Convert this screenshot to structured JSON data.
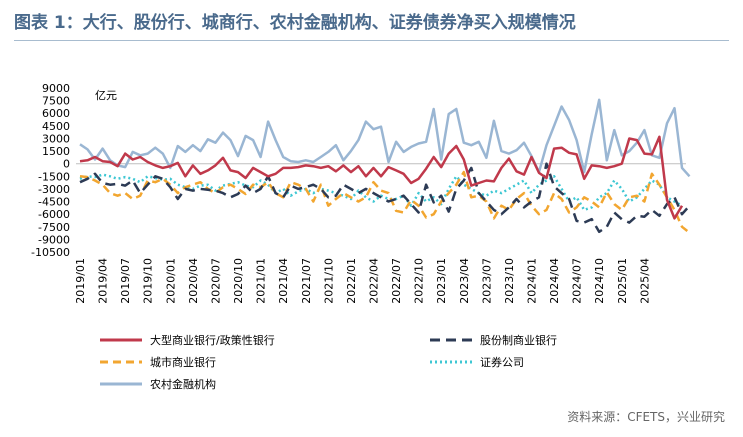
{
  "title": "图表 1：大行、股份行、城商行、农村金融机构、证券债券净买入规模情况",
  "source": "资料来源：CFETS，兴业研究",
  "chart_data": {
    "type": "line",
    "unit": "亿元",
    "ylim": [
      -10500,
      9000
    ],
    "yticks": [
      9000,
      7500,
      6000,
      4500,
      3000,
      1500,
      0,
      -1500,
      -3000,
      -4500,
      -6000,
      -7500,
      -9000,
      -10500
    ],
    "xlabels": [
      "2019/01",
      "2019/04",
      "2019/07",
      "2019/10",
      "2020/01",
      "2020/04",
      "2020/07",
      "2020/10",
      "2021/01",
      "2021/04",
      "2021/07",
      "2021/10",
      "2022/01",
      "2022/04",
      "2022/07",
      "2022/10",
      "2023/01",
      "2023/04",
      "2023/07",
      "2023/10",
      "2024/01",
      "2024/04",
      "2024/07",
      "2024/10",
      "2025/01",
      "2025/04"
    ],
    "series": [
      {
        "name": "大型商业银行/政策性银行",
        "color": "#c0394b",
        "dash": "",
        "width": 2.5,
        "values": [
          300,
          400,
          800,
          300,
          200,
          -300,
          1200,
          500,
          800,
          200,
          -200,
          -500,
          -300,
          100,
          -1500,
          -200,
          -1200,
          -800,
          -200,
          700,
          -800,
          -1000,
          -1700,
          -500,
          -1000,
          -1500,
          -1200,
          -500,
          -500,
          -400,
          -200,
          -300,
          -500,
          -300,
          -900,
          -200,
          -1000,
          -300,
          -1500,
          -500,
          -1500,
          -400,
          -800,
          -1200,
          -2300,
          -1800,
          -600,
          800,
          -400,
          1200,
          2100,
          500,
          -2600,
          -2300,
          -2000,
          -2100,
          -500,
          600,
          -900,
          -1300,
          800,
          -1100,
          -1700,
          1800,
          1900,
          1300,
          1100,
          -1800,
          -200,
          -300,
          -500,
          -300,
          0,
          3000,
          2800,
          1200,
          1100,
          3200,
          -4300,
          -6500,
          -5000
        ]
      },
      {
        "name": "股份制商业银行",
        "color": "#2d3b55",
        "dash": "10,6",
        "width": 2.5,
        "values": [
          -2200,
          -1800,
          -1200,
          -2300,
          -2500,
          -2400,
          -2600,
          -2000,
          -3500,
          -2500,
          -1500,
          -1800,
          -2800,
          -4200,
          -3000,
          -3200,
          -3000,
          -3100,
          -3200,
          -3500,
          -4000,
          -3600,
          -2600,
          -3500,
          -3000,
          -1500,
          -3500,
          -4000,
          -2600,
          -3000,
          -2800,
          -2500,
          -3000,
          -4000,
          -3800,
          -2500,
          -3000,
          -3500,
          -3000,
          -3500,
          -4000,
          -4500,
          -4200,
          -3800,
          -4800,
          -5800,
          -2500,
          -4600,
          -3800,
          -5700,
          -3000,
          -2000,
          -500,
          -3500,
          -4500,
          -5500,
          -6000,
          -5200,
          -4200,
          -5200,
          -4500,
          -4000,
          0,
          -2700,
          -3500,
          -4200,
          -6800,
          -7000,
          -6600,
          -8100,
          -7500,
          -5800,
          -6600,
          -7000,
          -6200,
          -6300,
          -5500,
          -6200,
          -4800,
          -4000,
          -6000,
          -5000
        ]
      },
      {
        "name": "城市商业银行",
        "color": "#f2a630",
        "dash": "8,5",
        "width": 2.5,
        "values": [
          -1500,
          -1600,
          -2000,
          -2500,
          -3500,
          -3800,
          -3500,
          -4200,
          -3800,
          -2000,
          -2200,
          -1800,
          -2500,
          -3500,
          -2800,
          -2500,
          -2200,
          -3000,
          -3500,
          -2800,
          -2500,
          -3000,
          -3600,
          -2500,
          -2800,
          -2200,
          -3500,
          -4000,
          -2200,
          -2500,
          -3000,
          -4500,
          -2500,
          -5000,
          -4200,
          -3500,
          -4000,
          -4500,
          -4000,
          -2200,
          -3200,
          -3500,
          -5600,
          -5800,
          -4300,
          -5000,
          -6400,
          -6000,
          -4500,
          -3500,
          -2500,
          -1000,
          -4000,
          -3800,
          -4500,
          -6500,
          -5000,
          -5500,
          -4200,
          -3500,
          -5000,
          -6000,
          -5500,
          -3500,
          -4200,
          -5800,
          -5200,
          -4000,
          -4500,
          -5200,
          -3400,
          -4800,
          -5500,
          -4000,
          -3800,
          -4500,
          -1200,
          -2500,
          -4000,
          -5500,
          -7500,
          -8200
        ]
      },
      {
        "name": "证券公司",
        "color": "#3ec7d3",
        "dash": "2,3",
        "width": 2.5,
        "values": [
          -1800,
          -1500,
          -1600,
          -1300,
          -1500,
          -1800,
          -1600,
          -1800,
          -2200,
          -1500,
          -1700,
          -1900,
          -1800,
          -2500,
          -2800,
          -3000,
          -2600,
          -2500,
          -3200,
          -2600,
          -2400,
          -2200,
          -2600,
          -2800,
          -2000,
          -2500,
          -3500,
          -3000,
          -3800,
          -3300,
          -3000,
          -3500,
          -3000,
          -3200,
          -3500,
          -3800,
          -4200,
          -3200,
          -4000,
          -4500,
          -3800,
          -4200,
          -4200,
          -3800,
          -5000,
          -3500,
          -4500,
          -4000,
          -4800,
          -3000,
          -1500,
          -2500,
          -3000,
          -3500,
          -3800,
          -3200,
          -3500,
          -3000,
          -2500,
          -2000,
          -3500,
          -2500,
          -2000,
          -1500,
          -3000,
          -4500,
          -4000,
          -5500,
          -5200,
          -4000,
          -3500,
          -2000,
          -3000,
          -4500,
          -4000,
          -3000,
          -2000,
          -2500,
          -4000,
          -4500,
          -5000
        ]
      },
      {
        "name": "农村金融机构",
        "color": "#9ab6d3",
        "dash": "",
        "width": 2.5,
        "values": [
          2300,
          1700,
          500,
          1800,
          400,
          -200,
          -400,
          1400,
          1000,
          1200,
          1900,
          1200,
          -500,
          2100,
          1400,
          2200,
          1500,
          2900,
          2500,
          3700,
          2800,
          900,
          3300,
          2800,
          800,
          5000,
          2800,
          800,
          300,
          200,
          400,
          200,
          800,
          1400,
          2200,
          400,
          1500,
          2800,
          5000,
          4100,
          4400,
          200,
          2600,
          1400,
          2000,
          2400,
          2600,
          6500,
          500,
          5900,
          6500,
          2500,
          2200,
          2600,
          700,
          5100,
          1500,
          1200,
          1600,
          2500,
          900,
          -1000,
          2200,
          4500,
          6800,
          5200,
          2800,
          -1000,
          3500,
          7600,
          400,
          4000,
          1000,
          1500,
          2500,
          4000,
          1000,
          700,
          4800,
          6600,
          -500,
          -1500
        ]
      }
    ]
  }
}
